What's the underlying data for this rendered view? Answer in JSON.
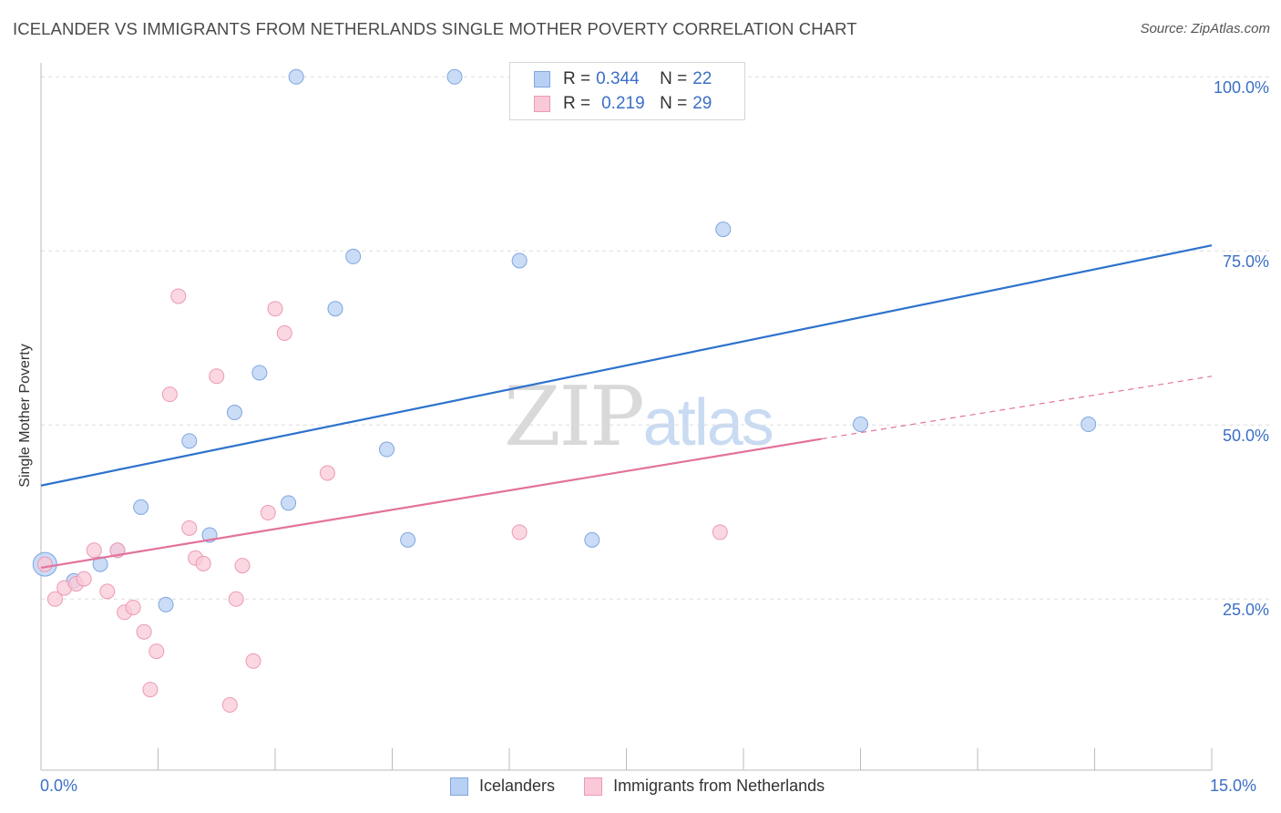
{
  "title": "ICELANDER VS IMMIGRANTS FROM NETHERLANDS SINGLE MOTHER POVERTY CORRELATION CHART",
  "source": "Source: ZipAtlas.com",
  "watermark": {
    "zip": "ZIP",
    "atlas": "atlas"
  },
  "legend": {
    "row1": {
      "r_label": "R =",
      "r_value": "0.344",
      "n_label": "N =",
      "n_value": "22"
    },
    "row2": {
      "r_label": "R =",
      "r_value": "0.219",
      "n_label": "N =",
      "n_value": "29"
    }
  },
  "bottom_legend": {
    "series1": "Icelanders",
    "series2": "Immigrants from Netherlands"
  },
  "colors": {
    "blue_fill": "#b8d0f3",
    "blue_stroke": "#7ea6e0",
    "blue_line": "#2e72cc",
    "pink_fill": "#f9c9d7",
    "pink_stroke": "#ec9ab4",
    "pink_line": "#e2729c",
    "tick_text": "#3b6fc5"
  },
  "chart_data": {
    "type": "scatter",
    "title": "ICELANDER VS IMMIGRANTS FROM NETHERLANDS SINGLE MOTHER POVERTY CORRELATION CHART",
    "xlabel": "",
    "ylabel": "Single Mother Poverty",
    "xlim": [
      0,
      15
    ],
    "ylim": [
      2,
      102
    ],
    "x_tick_labels": [
      "0.0%",
      "15.0%"
    ],
    "y_tick_labels": [
      "25.0%",
      "50.0%",
      "75.0%",
      "100.0%"
    ],
    "y_ticks": [
      25,
      50,
      75,
      100
    ],
    "grid": true,
    "series": [
      {
        "name": "Icelanders",
        "color": "#7ea6e0",
        "points": [
          [
            0.05,
            30.0
          ],
          [
            0.42,
            27.6
          ],
          [
            0.76,
            30.0
          ],
          [
            0.98,
            32.0
          ],
          [
            1.28,
            38.2
          ],
          [
            1.6,
            24.2
          ],
          [
            1.9,
            47.7
          ],
          [
            2.16,
            34.2
          ],
          [
            2.48,
            51.8
          ],
          [
            2.8,
            57.5
          ],
          [
            3.17,
            38.8
          ],
          [
            3.27,
            100.0
          ],
          [
            3.77,
            66.7
          ],
          [
            4.0,
            74.2
          ],
          [
            4.43,
            46.5
          ],
          [
            4.7,
            33.5
          ],
          [
            5.3,
            100.0
          ],
          [
            6.13,
            73.6
          ],
          [
            7.06,
            33.5
          ],
          [
            8.74,
            78.1
          ],
          [
            10.5,
            50.1
          ],
          [
            13.42,
            50.1
          ]
        ],
        "trend": {
          "x": [
            0,
            15
          ],
          "y": [
            41.3,
            75.8
          ]
        }
      },
      {
        "name": "Immigrants from Netherlands",
        "color": "#ec9ab4",
        "points": [
          [
            0.05,
            30.0
          ],
          [
            0.18,
            25.0
          ],
          [
            0.3,
            26.6
          ],
          [
            0.45,
            27.2
          ],
          [
            0.55,
            27.9
          ],
          [
            0.68,
            32.0
          ],
          [
            0.85,
            26.1
          ],
          [
            0.98,
            32.0
          ],
          [
            1.07,
            23.1
          ],
          [
            1.18,
            23.8
          ],
          [
            1.32,
            20.3
          ],
          [
            1.4,
            12.0
          ],
          [
            1.48,
            17.5
          ],
          [
            1.65,
            54.4
          ],
          [
            1.76,
            68.5
          ],
          [
            1.9,
            35.2
          ],
          [
            1.98,
            30.9
          ],
          [
            2.08,
            30.1
          ],
          [
            2.25,
            57.0
          ],
          [
            2.42,
            9.8
          ],
          [
            2.5,
            25.0
          ],
          [
            2.58,
            29.8
          ],
          [
            2.72,
            16.1
          ],
          [
            2.91,
            37.4
          ],
          [
            3.0,
            66.7
          ],
          [
            3.12,
            63.2
          ],
          [
            3.67,
            43.1
          ],
          [
            6.13,
            34.6
          ],
          [
            8.7,
            34.6
          ]
        ],
        "trend": {
          "x": [
            0,
            10.0
          ],
          "y": [
            29.5,
            48.0
          ]
        },
        "trend_dashed": {
          "x": [
            10.0,
            15
          ],
          "y": [
            48.0,
            57.0
          ]
        }
      }
    ]
  }
}
